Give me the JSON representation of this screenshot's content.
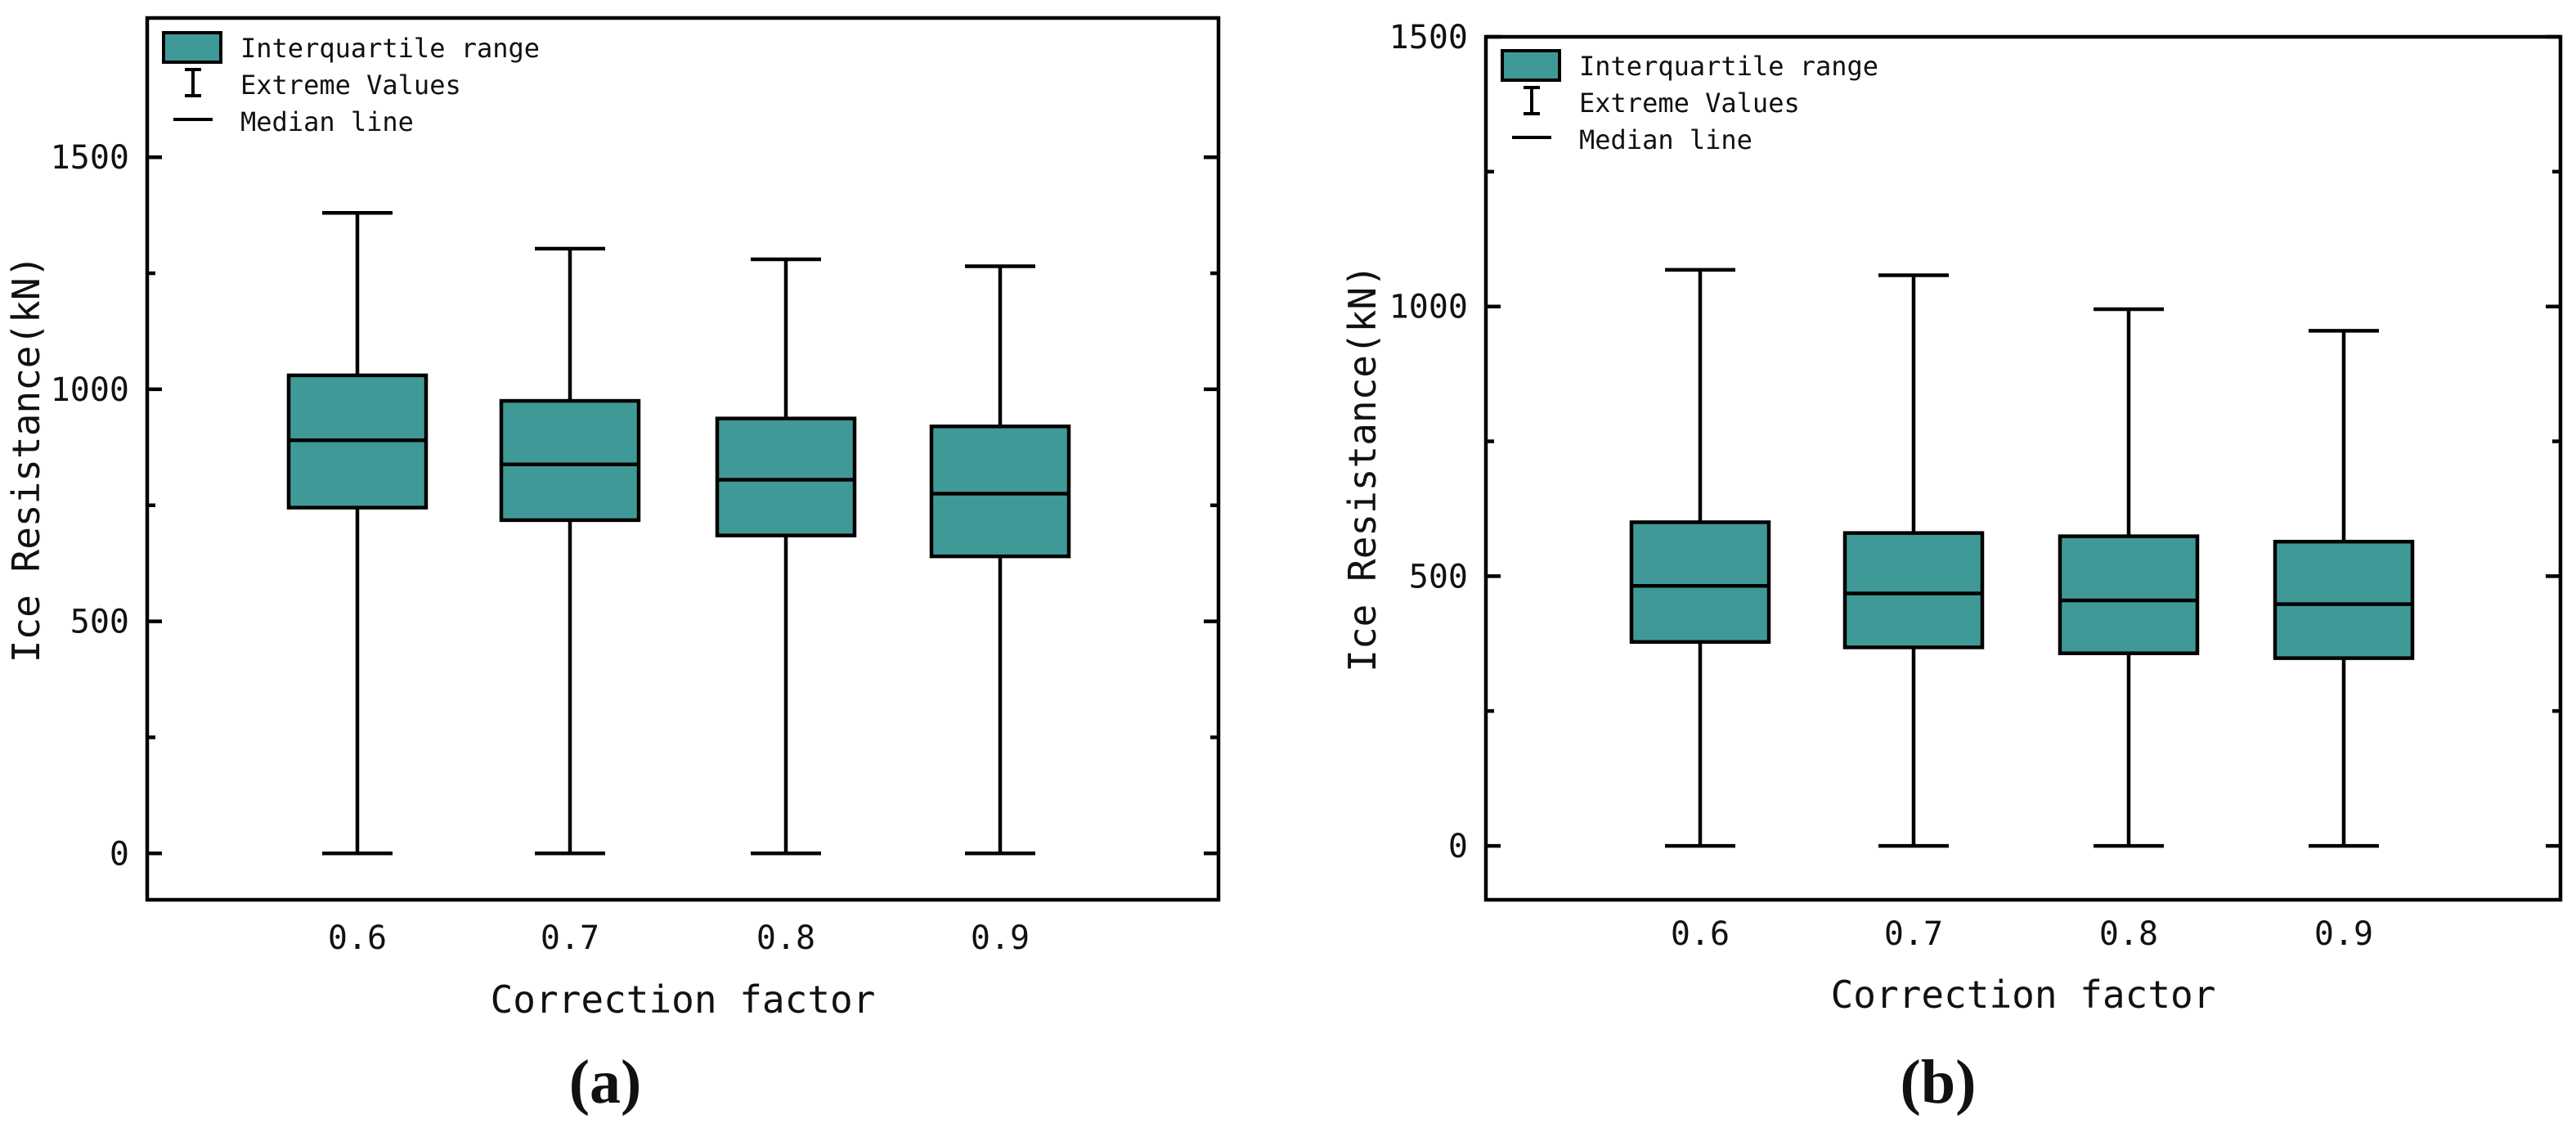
{
  "chart_data": [
    {
      "type": "box",
      "panel_label": "(a)",
      "xlabel": "Correction factor",
      "ylabel": "Ice Resistance(kN)",
      "categories": [
        "0.6",
        "0.7",
        "0.8",
        "0.9"
      ],
      "ylim": [
        -100,
        1800
      ],
      "yticks": [
        0,
        500,
        1000,
        1500
      ],
      "yticks_minor": [
        250,
        750,
        1250
      ],
      "box_color": "#3f9a97",
      "line_color": "#000000",
      "boxes": [
        {
          "category": "0.6",
          "min": 0,
          "q1": 745,
          "median": 890,
          "q3": 1030,
          "max": 1380
        },
        {
          "category": "0.7",
          "min": 0,
          "q1": 718,
          "median": 838,
          "q3": 975,
          "max": 1303
        },
        {
          "category": "0.8",
          "min": 0,
          "q1": 685,
          "median": 805,
          "q3": 937,
          "max": 1280
        },
        {
          "category": "0.9",
          "min": 0,
          "q1": 640,
          "median": 775,
          "q3": 920,
          "max": 1265
        }
      ],
      "legend": {
        "placement": "top-left",
        "entries": [
          "Interquartile range",
          "Extreme Values",
          "Median line"
        ]
      }
    },
    {
      "type": "box",
      "panel_label": "(b)",
      "xlabel": "Correction factor",
      "ylabel": "Ice Resistance(kN)",
      "categories": [
        "0.6",
        "0.7",
        "0.8",
        "0.9"
      ],
      "ylim": [
        -100,
        1500
      ],
      "yticks": [
        0,
        500,
        1000,
        1500
      ],
      "yticks_minor": [
        250,
        750,
        1250
      ],
      "box_color": "#3f9a97",
      "line_color": "#000000",
      "boxes": [
        {
          "category": "0.6",
          "min": 0,
          "q1": 378,
          "median": 482,
          "q3": 600,
          "max": 1068
        },
        {
          "category": "0.7",
          "min": 0,
          "q1": 368,
          "median": 468,
          "q3": 580,
          "max": 1058
        },
        {
          "category": "0.8",
          "min": 0,
          "q1": 357,
          "median": 455,
          "q3": 574,
          "max": 995
        },
        {
          "category": "0.9",
          "min": 0,
          "q1": 348,
          "median": 448,
          "q3": 564,
          "max": 955
        }
      ],
      "legend": {
        "placement": "top-left",
        "entries": [
          "Interquartile range",
          "Extreme Values",
          "Median line"
        ]
      }
    }
  ]
}
